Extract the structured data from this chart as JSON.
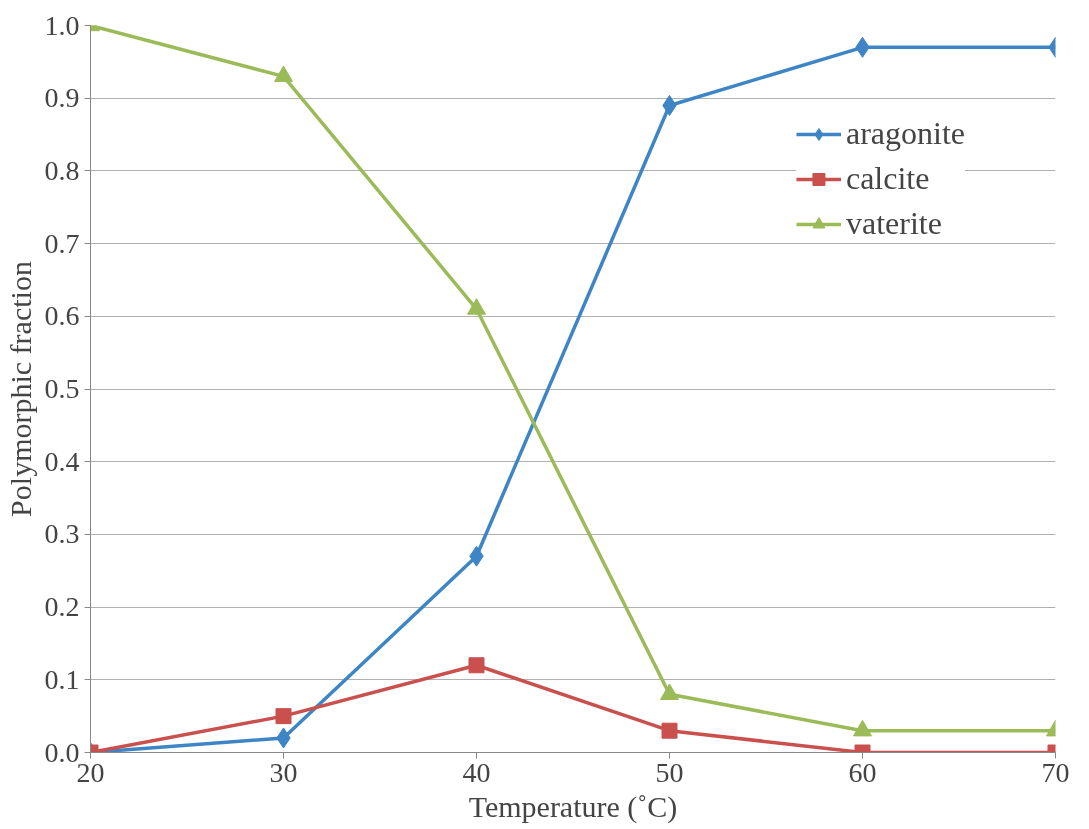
{
  "chart_data": {
    "type": "line",
    "xlabel": "Temperature (˚C)",
    "ylabel": "Polymorphic fraction",
    "x": [
      20,
      30,
      40,
      50,
      60,
      70
    ],
    "series": [
      {
        "name": "aragonite",
        "color": "#3e85c6",
        "marker": "diamond",
        "values": [
          0.0,
          0.02,
          0.27,
          0.89,
          0.97,
          0.97
        ]
      },
      {
        "name": "calcite",
        "color": "#c9504d",
        "marker": "square",
        "values": [
          0.0,
          0.05,
          0.12,
          0.03,
          0.0,
          0.0
        ]
      },
      {
        "name": "vaterite",
        "color": "#9bbb59",
        "marker": "triangle",
        "values": [
          1.0,
          0.93,
          0.61,
          0.08,
          0.03,
          0.03
        ]
      }
    ],
    "xlim": [
      20,
      70
    ],
    "xticks": [
      20,
      30,
      40,
      50,
      60,
      70
    ],
    "ylim": [
      0,
      1.0
    ],
    "yticks": [
      {
        "value": 0,
        "label": "0.0"
      },
      0.1,
      0.2,
      0.3,
      0.4,
      0.5,
      0.6,
      0.7,
      0.8,
      0.9,
      {
        "value": 1.0,
        "label": "1.0"
      }
    ],
    "grid": "y",
    "legend": "top right",
    "line_style": "solid"
  }
}
